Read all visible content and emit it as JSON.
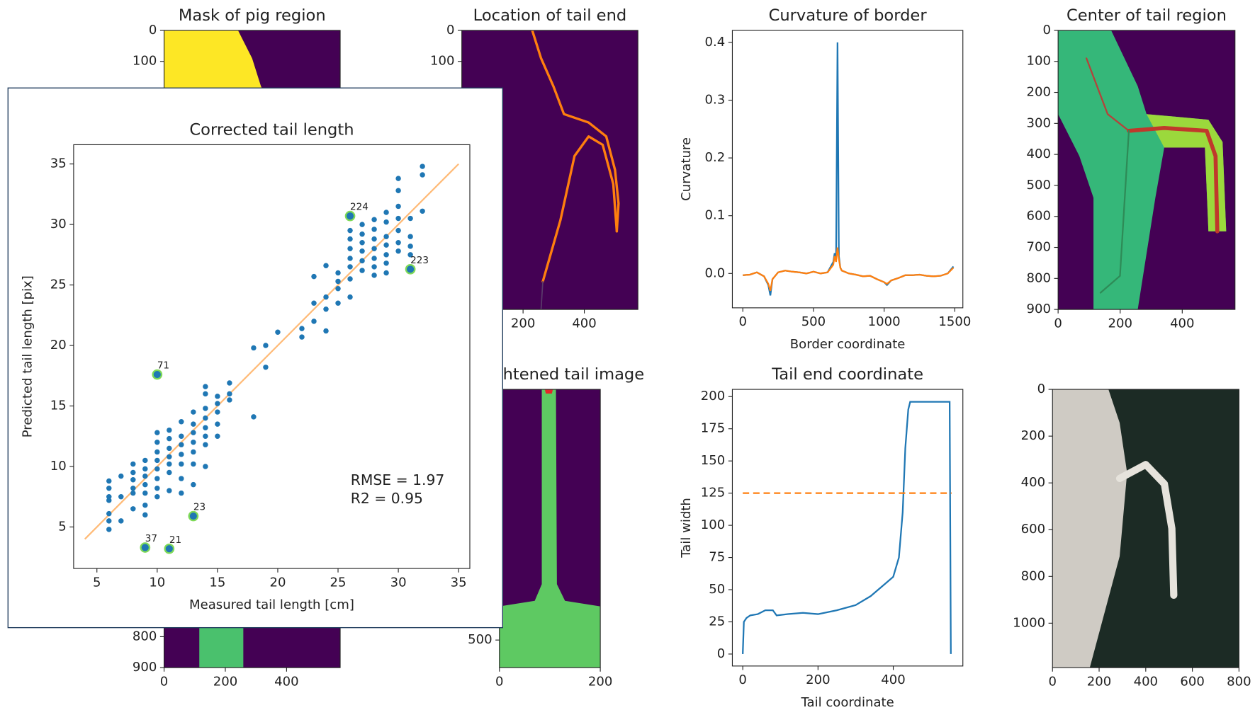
{
  "chart_data": [
    {
      "type": "image",
      "title": "Mask of pig region",
      "xlim": [
        0,
        575
      ],
      "ylim": [
        900,
        0
      ],
      "yticks": [
        0,
        100
      ]
    },
    {
      "type": "image",
      "title": "Location of tail end",
      "xlim": [
        0,
        575
      ],
      "ylim": [
        900,
        0
      ],
      "xticks": [
        200,
        400
      ],
      "yticks": [
        0,
        100
      ]
    },
    {
      "type": "line",
      "title": "Curvature of border",
      "xlabel": "Border coordinate",
      "ylabel": "Curvature",
      "xlim": [
        -74,
        1557
      ],
      "ylim": [
        -0.0595,
        0.4208
      ],
      "xticks": [
        0,
        500,
        1000,
        1500
      ],
      "yticks": [
        {
          "value": 0,
          "label": "0.0"
        },
        0.1,
        0.2,
        0.3,
        0.4
      ],
      "series": [
        {
          "color": "#1f77b4",
          "x": [
            0,
            50,
            100,
            150,
            180,
            195,
            210,
            250,
            300,
            350,
            400,
            450,
            500,
            550,
            600,
            640,
            650,
            660,
            670,
            680,
            690,
            700,
            750,
            800,
            850,
            900,
            950,
            1000,
            1020,
            1050,
            1100,
            1150,
            1200,
            1250,
            1300,
            1350,
            1400,
            1450,
            1490
          ],
          "values": [
            -0.003,
            -0.002,
            0.002,
            -0.005,
            -0.02,
            -0.038,
            -0.01,
            0.002,
            0.005,
            0.003,
            0.002,
            0.0,
            0.003,
            0.0,
            0.002,
            0.02,
            0.035,
            0.025,
            0.4,
            0.03,
            0.01,
            0.005,
            0.0,
            -0.002,
            -0.005,
            -0.004,
            -0.01,
            -0.015,
            -0.02,
            -0.012,
            -0.008,
            -0.003,
            -0.003,
            -0.002,
            -0.004,
            -0.005,
            -0.004,
            0.0,
            0.012
          ]
        },
        {
          "color": "#ff7f0e",
          "x": [
            0,
            50,
            100,
            150,
            180,
            195,
            210,
            250,
            300,
            350,
            400,
            450,
            500,
            550,
            600,
            640,
            650,
            660,
            670,
            680,
            690,
            700,
            750,
            800,
            850,
            900,
            950,
            1000,
            1020,
            1050,
            1100,
            1150,
            1200,
            1250,
            1300,
            1350,
            1400,
            1450,
            1490
          ],
          "values": [
            -0.003,
            -0.002,
            0.002,
            -0.005,
            -0.018,
            -0.03,
            -0.01,
            0.002,
            0.005,
            0.003,
            0.002,
            0.0,
            0.003,
            0.0,
            0.002,
            0.015,
            0.03,
            0.02,
            0.045,
            0.025,
            0.01,
            0.005,
            0.0,
            -0.002,
            -0.005,
            -0.004,
            -0.01,
            -0.015,
            -0.018,
            -0.012,
            -0.008,
            -0.003,
            -0.003,
            -0.002,
            -0.004,
            -0.005,
            -0.004,
            0.0,
            0.01
          ]
        }
      ]
    },
    {
      "type": "image",
      "title": "Center of tail region",
      "xlim": [
        0,
        570
      ],
      "ylim": [
        900,
        0
      ],
      "xticks": [
        0,
        200,
        400
      ],
      "yticks": [
        0,
        100,
        200,
        300,
        400,
        500,
        600,
        700,
        800,
        900
      ]
    },
    {
      "type": "image",
      "xlim": [
        0,
        575
      ],
      "ylim": [
        900,
        0
      ],
      "xticks": [
        0,
        200,
        400
      ],
      "yticks": [
        800,
        900
      ]
    },
    {
      "type": "image",
      "title": "Straightened tail image",
      "xlim": [
        0,
        200
      ],
      "ylim": [
        555,
        0
      ],
      "xticks": [
        0,
        200
      ],
      "yticks": [
        500
      ]
    },
    {
      "type": "line",
      "title": "Tail end coordinate",
      "xlabel": "Tail coordinate",
      "ylabel": "Tail width",
      "xlim": [
        -27.7,
        585
      ],
      "ylim": [
        -9.3,
        205.6
      ],
      "xticks": [
        0,
        200,
        400
      ],
      "yticks": [
        0,
        25,
        50,
        75,
        100,
        125,
        150,
        175,
        200
      ],
      "series": [
        {
          "color": "#1f77b4",
          "x": [
            0,
            3,
            10,
            20,
            40,
            60,
            80,
            90,
            120,
            160,
            200,
            250,
            300,
            340,
            380,
            400,
            415,
            425,
            432,
            440,
            445,
            500,
            550,
            553
          ],
          "values": [
            0,
            25,
            28,
            30,
            31,
            34,
            34,
            30,
            31,
            32,
            31,
            34,
            38,
            45,
            55,
            60,
            75,
            110,
            160,
            190,
            196,
            196,
            196,
            0
          ]
        },
        {
          "color": "#ff7f0e",
          "linestyle": "dashed",
          "x": [
            0,
            555
          ],
          "values": [
            125,
            125
          ]
        }
      ]
    },
    {
      "type": "image",
      "xlim": [
        0,
        800
      ],
      "ylim": [
        1190,
        0
      ],
      "xticks": [
        0,
        200,
        400,
        600,
        800
      ],
      "yticks": [
        0,
        200,
        400,
        600,
        800,
        1000
      ]
    },
    {
      "type": "scatter",
      "title": "Corrected tail length",
      "xlabel": "Measured tail length [cm]",
      "ylabel": "Predicted tail length [pix]",
      "xlim": [
        3.07,
        35.93
      ],
      "ylim": [
        1.57,
        36.59
      ],
      "xticks": [
        5,
        10,
        15,
        20,
        25,
        30,
        35
      ],
      "yticks": [
        5,
        10,
        15,
        20,
        25,
        30,
        35
      ],
      "series": [
        {
          "color": "#1f77b4",
          "x": [
            6,
            6,
            6,
            6,
            6,
            6,
            6,
            7,
            7,
            7,
            8,
            8,
            8,
            8,
            8,
            8,
            9,
            9,
            9,
            9,
            9,
            9,
            9,
            10,
            10,
            10,
            10,
            10,
            10,
            10,
            10,
            11,
            11,
            11,
            11,
            11,
            11,
            11,
            12,
            12,
            12,
            12,
            12,
            12,
            12,
            13,
            13,
            13,
            13,
            13,
            13,
            13,
            14,
            14,
            14,
            14,
            14,
            14,
            14,
            14,
            15,
            15,
            15,
            15,
            15,
            16,
            16,
            16,
            18,
            18,
            19,
            19,
            20,
            22,
            22,
            23,
            23,
            23,
            24,
            24,
            24,
            24,
            25,
            25,
            25,
            25,
            26,
            26,
            26,
            26,
            26,
            26,
            26,
            27,
            27,
            27,
            27,
            27,
            27,
            28,
            28,
            28,
            28,
            28,
            28,
            28,
            29,
            29,
            29,
            29,
            29,
            29,
            29,
            30,
            30,
            30,
            30,
            30,
            30,
            30,
            31,
            31,
            31,
            31,
            32,
            32,
            32
          ],
          "values": [
            4.8,
            5.5,
            6.1,
            7.2,
            7.5,
            8.2,
            8.8,
            5.5,
            7.5,
            9.2,
            6.5,
            7.8,
            8.2,
            8.9,
            9.5,
            10.2,
            6.0,
            6.8,
            7.8,
            8.5,
            9.2,
            9.8,
            10.5,
            7.5,
            8.2,
            9.0,
            9.8,
            10.5,
            11.2,
            12.0,
            12.8,
            8.0,
            9.5,
            10.2,
            10.8,
            11.5,
            12.3,
            13.0,
            7.8,
            9.0,
            10.2,
            11.0,
            11.8,
            12.5,
            13.7,
            8.5,
            10.2,
            11.2,
            12.0,
            12.8,
            13.5,
            14.5,
            10.0,
            11.8,
            12.5,
            13.2,
            14.0,
            14.8,
            16.0,
            16.6,
            12.5,
            13.5,
            14.5,
            15.2,
            15.8,
            15.5,
            16.0,
            16.9,
            14.1,
            19.8,
            18.2,
            20.0,
            21.1,
            20.7,
            21.4,
            22.0,
            23.5,
            25.7,
            21.2,
            23.0,
            24.0,
            26.6,
            23.5,
            24.7,
            25.3,
            26.0,
            24.0,
            25.5,
            26.5,
            27.2,
            28.0,
            28.8,
            29.5,
            26.2,
            27.0,
            27.8,
            28.5,
            29.2,
            30.0,
            25.8,
            26.5,
            27.2,
            28.0,
            28.8,
            29.6,
            30.4,
            26.0,
            26.8,
            27.5,
            28.3,
            29.0,
            30.2,
            31.0,
            27.8,
            28.5,
            29.5,
            30.5,
            31.5,
            32.8,
            33.8,
            27.5,
            28.2,
            29.0,
            30.5,
            31.1,
            34.1,
            34.8
          ]
        }
      ],
      "fit_line": {
        "color": "#ffbb78",
        "x": [
          4,
          35
        ],
        "values": [
          4,
          35
        ]
      },
      "annotations": [
        {
          "x": 26,
          "y": 30.7,
          "label": "224"
        },
        {
          "x": 31,
          "y": 26.3,
          "label": "223"
        },
        {
          "x": 10,
          "y": 17.6,
          "label": "71"
        },
        {
          "x": 13,
          "y": 5.9,
          "label": "23"
        },
        {
          "x": 9,
          "y": 3.3,
          "label": "37"
        },
        {
          "x": 11,
          "y": 3.2,
          "label": "21"
        }
      ],
      "annotation_color": "#7ed957",
      "stats": [
        "RMSE = 1.97",
        "R2 = 0.95"
      ]
    }
  ]
}
